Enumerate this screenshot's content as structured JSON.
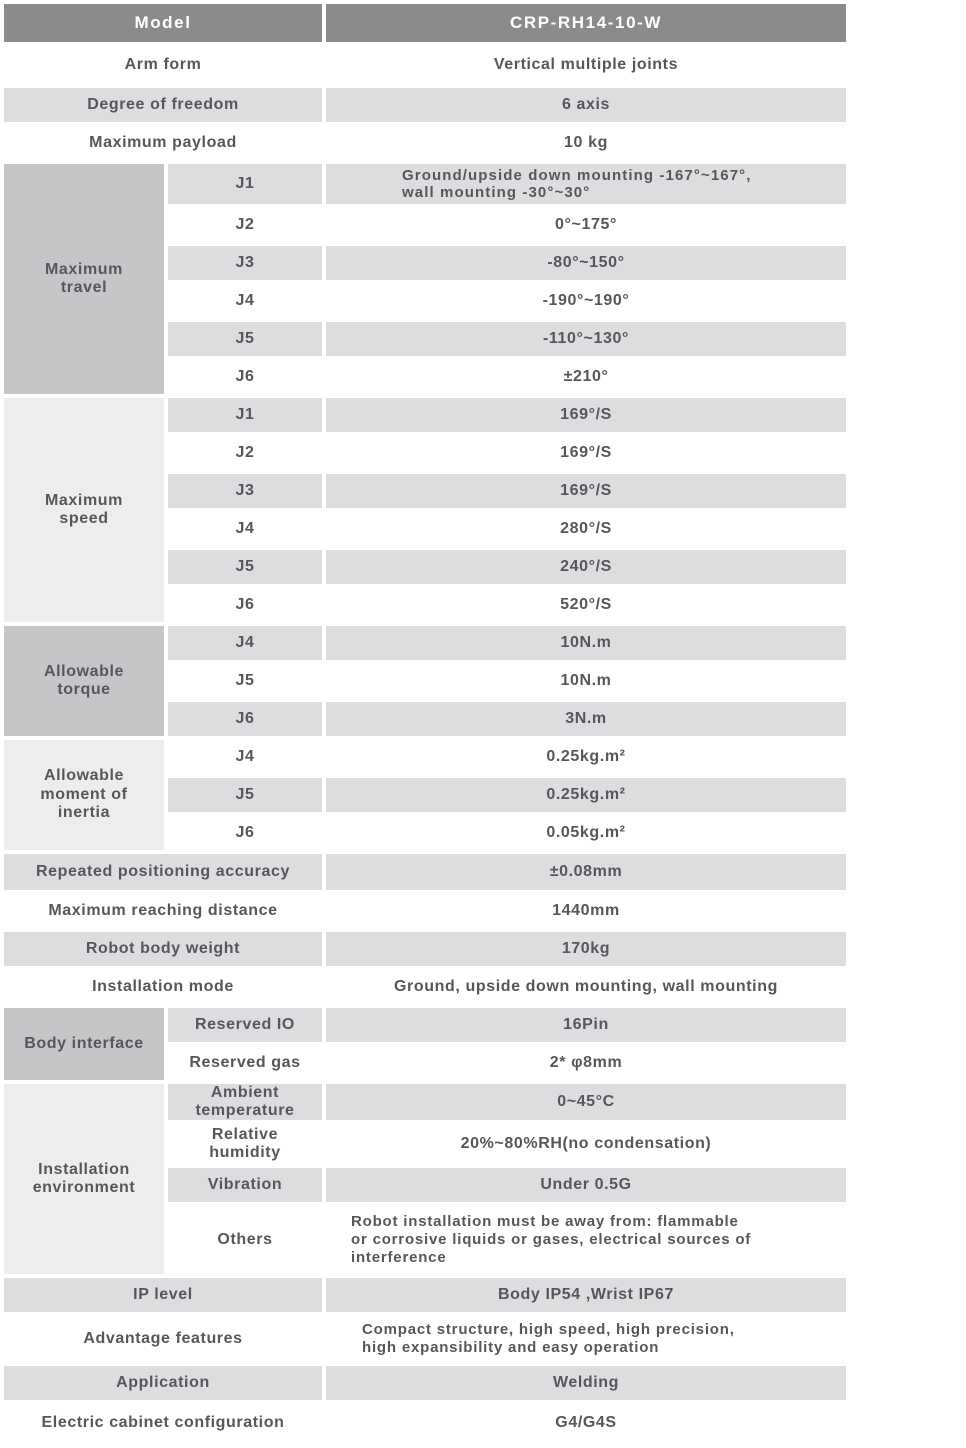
{
  "colors": {
    "page-bg": "#ffffff",
    "header-bg": "#8a8b8d",
    "header-text": "#ffffff",
    "band": "#dcddde",
    "group-medium": "#c5c6c8",
    "group-light": "#ededee",
    "text": "#56575b"
  },
  "table": {
    "blocks": [
      {
        "label": "Model",
        "value": "CRP-RH14-10-W"
      },
      {
        "label": "Arm form",
        "value": "Vertical multiple joints"
      },
      {
        "label": "Degree of freedom",
        "value": "6 axis"
      },
      {
        "label": "Maximum payload",
        "value": "10 kg"
      },
      {
        "label": "Maximum travel",
        "rows": [
          {
            "joint": "J1",
            "value": "Ground/upside down mounting -167°~167°,\nwall mounting -30°~30°"
          },
          {
            "joint": "J2",
            "value": "0°~175°"
          },
          {
            "joint": "J3",
            "value": "-80°~150°"
          },
          {
            "joint": "J4",
            "value": "-190°~190°"
          },
          {
            "joint": "J5",
            "value": "-110°~130°"
          },
          {
            "joint": "J6",
            "value": "±210°"
          }
        ]
      },
      {
        "label": "Maximum speed",
        "rows": [
          {
            "joint": "J1",
            "value": "169°/S"
          },
          {
            "joint": "J2",
            "value": "169°/S"
          },
          {
            "joint": "J3",
            "value": "169°/S"
          },
          {
            "joint": "J4",
            "value": "280°/S"
          },
          {
            "joint": "J5",
            "value": "240°/S"
          },
          {
            "joint": "J6",
            "value": "520°/S"
          }
        ]
      },
      {
        "label": "Allowable torque",
        "rows": [
          {
            "joint": "J4",
            "value": "10N.m"
          },
          {
            "joint": "J5",
            "value": "10N.m"
          },
          {
            "joint": "J6",
            "value": "3N.m"
          }
        ]
      },
      {
        "label": "Allowable moment of inertia",
        "rows": [
          {
            "joint": "J4",
            "value": "0.25kg.m²"
          },
          {
            "joint": "J5",
            "value": "0.25kg.m²"
          },
          {
            "joint": "J6",
            "value": "0.05kg.m²"
          }
        ]
      },
      {
        "label": "Repeated positioning accuracy",
        "value": "±0.08mm"
      },
      {
        "label": "Maximum reaching distance",
        "value": "1440mm"
      },
      {
        "label": "Robot body weight",
        "value": "170kg"
      },
      {
        "label": "Installation mode",
        "value": "Ground, upside down mounting, wall mounting"
      },
      {
        "label": "Body interface",
        "rows": [
          {
            "joint": "Reserved IO",
            "value": "16Pin"
          },
          {
            "joint": "Reserved gas",
            "value": "2* φ8mm"
          }
        ]
      },
      {
        "label": "Installation environment",
        "rows": [
          {
            "joint": "Ambient temperature",
            "value": "0~45°C"
          },
          {
            "joint": "Relative humidity",
            "value": "20%~80%RH(no condensation)"
          },
          {
            "joint": "Vibration",
            "value": "Under 0.5G"
          },
          {
            "joint": "Others",
            "value": "Robot installation must be away from: flammable\nor corrosive liquids or gases, electrical sources of\ninterference"
          }
        ]
      },
      {
        "label": "IP level",
        "value": "Body IP54 ,Wrist IP67"
      },
      {
        "label": "Advantage features",
        "value": "Compact structure, high speed, high precision,\nhigh expansibility and easy operation"
      },
      {
        "label": "Application",
        "value": "Welding"
      },
      {
        "label": "Electric cabinet configuration",
        "value": "G4/G4S"
      }
    ]
  }
}
